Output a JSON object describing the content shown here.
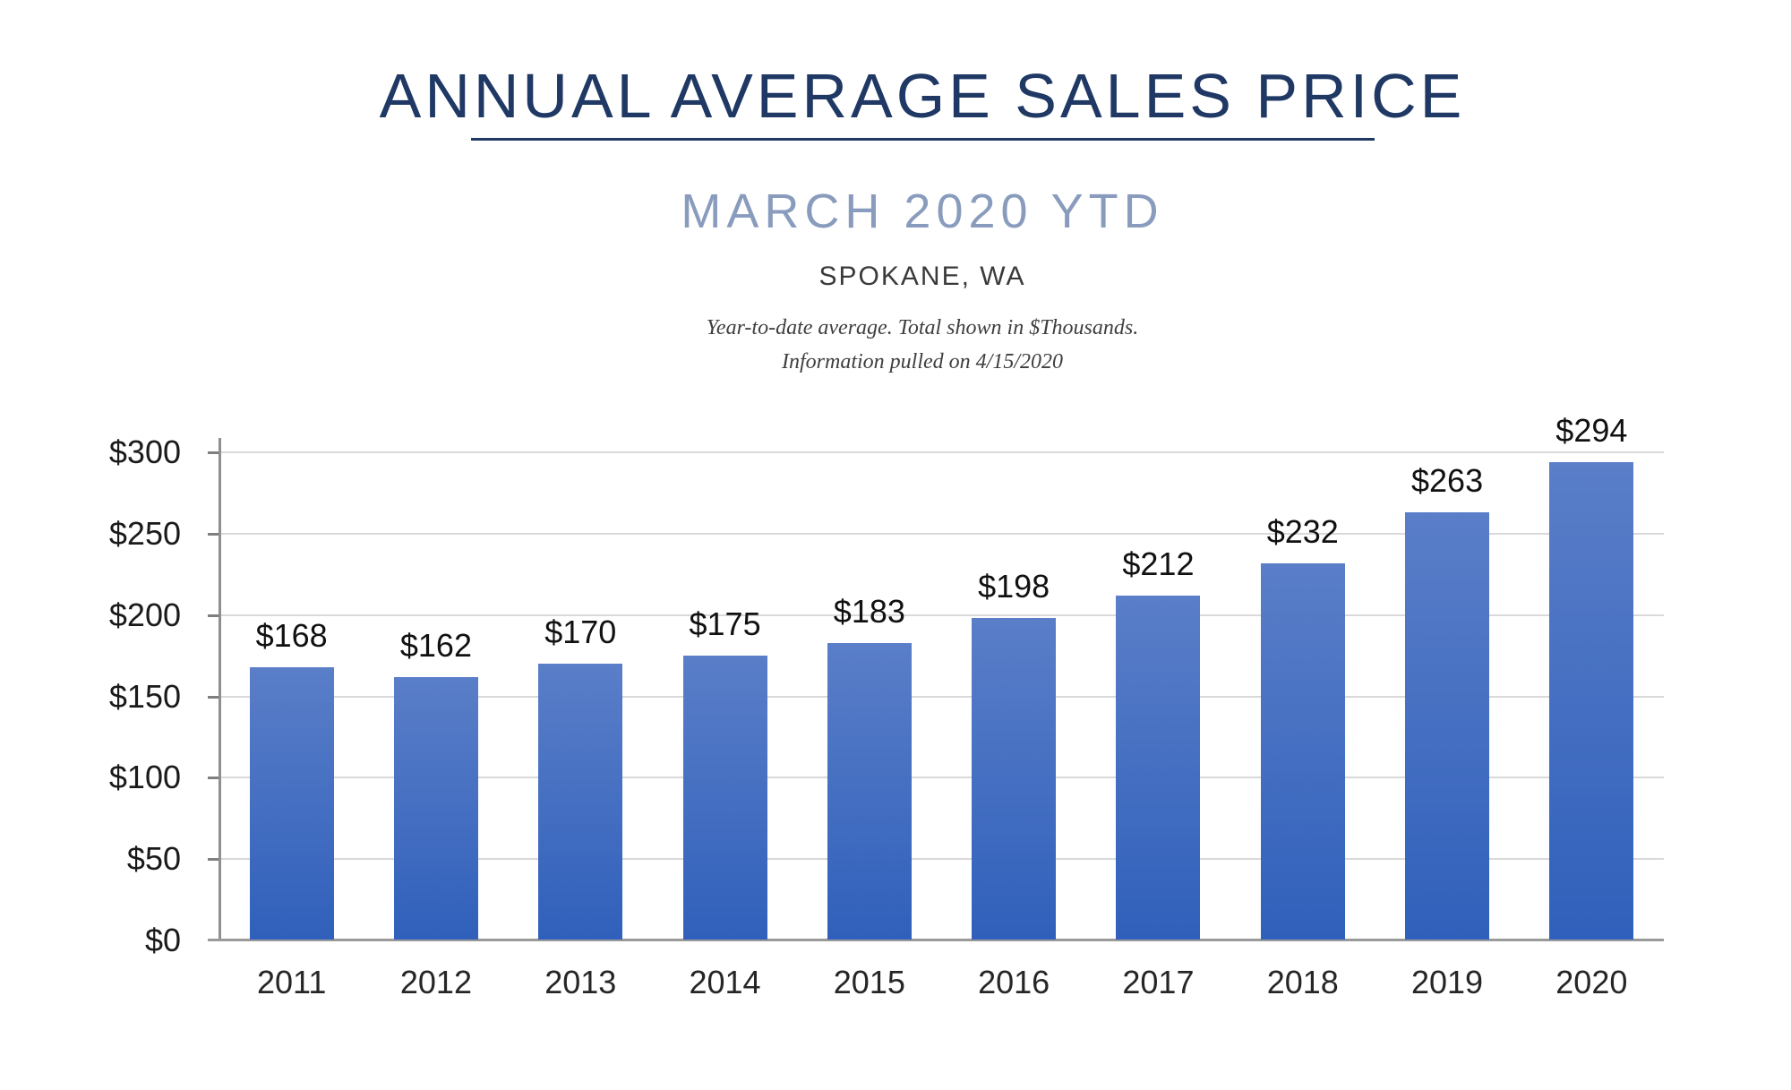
{
  "header": {
    "title": "ANNUAL AVERAGE SALES PRICE",
    "subtitle": "MARCH 2020 YTD",
    "location": "SPOKANE, WA",
    "note_line1": "Year-to-date average.  Total shown in $Thousands.",
    "note_line2": "Information pulled on 4/15/2020"
  },
  "colors": {
    "title_navy": "#1f3864",
    "subtitle_blue": "#8a9cbd",
    "bar_gradient_top": "#5a7ec8",
    "bar_gradient_bottom": "#3060bb",
    "gridline_gray": "#d9d9d9",
    "axis_gray": "#8f8f8f",
    "tick_gray": "#7f7f7f",
    "label_dark": "#1a1a1a"
  },
  "chart_data": {
    "type": "bar",
    "categories": [
      "2011",
      "2012",
      "2013",
      "2014",
      "2015",
      "2016",
      "2017",
      "2018",
      "2019",
      "2020"
    ],
    "values": [
      168,
      162,
      170,
      175,
      183,
      198,
      212,
      232,
      263,
      294
    ],
    "data_labels": [
      "$168",
      "$162",
      "$170",
      "$175",
      "$183",
      "$198",
      "$212",
      "$232",
      "$263",
      "$294"
    ],
    "y_tick_values": [
      300,
      250,
      200,
      150,
      100,
      50,
      0
    ],
    "y_tick_labels": [
      "$300",
      "$250",
      "$200",
      "$150",
      "$100",
      "$50",
      "$0"
    ],
    "ylim": [
      0,
      300
    ],
    "grid": true,
    "legend": "none",
    "units": "$Thousands",
    "xlabel": "",
    "ylabel": ""
  }
}
